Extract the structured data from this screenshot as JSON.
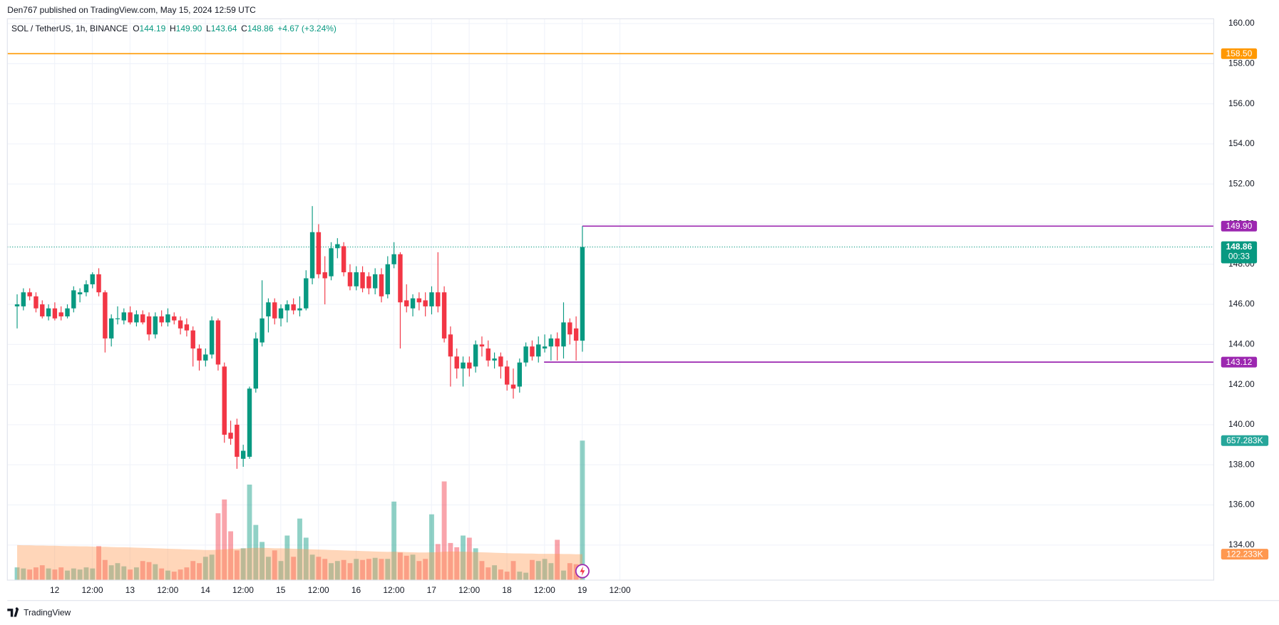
{
  "header": {
    "published": "Den767 published on TradingView.com, May 15, 2024 12:59 UTC"
  },
  "footer": {
    "brand": "TradingView"
  },
  "chart_data": {
    "type": "candlestick",
    "legend": {
      "symbol": "SOL / TetherUS, 1h, BINANCE",
      "items": [
        {
          "key": "O",
          "value": "144.19"
        },
        {
          "key": "H",
          "value": "149.90"
        },
        {
          "key": "L",
          "value": "143.64"
        },
        {
          "key": "C",
          "value": "148.86"
        }
      ],
      "change": "+4.67 (+3.24%)"
    },
    "up_color": "#089981",
    "down_color": "#f23645",
    "ylim": [
      132.25,
      160.24
    ],
    "yticks": [
      {
        "value": 134,
        "label": "134.00"
      },
      {
        "value": 136,
        "label": "136.00"
      },
      {
        "value": 138,
        "label": "138.00"
      },
      {
        "value": 140,
        "label": "140.00"
      },
      {
        "value": 142,
        "label": "142.00"
      },
      {
        "value": 144,
        "label": "144.00"
      },
      {
        "value": 146,
        "label": "146.00"
      },
      {
        "value": 148,
        "label": "148.00"
      },
      {
        "value": 150,
        "label": "150.00"
      },
      {
        "value": 152,
        "label": "152.00"
      },
      {
        "value": 154,
        "label": "154.00"
      },
      {
        "value": 156,
        "label": "156.00"
      },
      {
        "value": 158,
        "label": "158.00"
      },
      {
        "value": 160,
        "label": "160.00"
      }
    ],
    "xtick_labels": [
      "12",
      "12:00",
      "13",
      "12:00",
      "14",
      "12:00",
      "15",
      "12:00",
      "16",
      "12:00",
      "17",
      "12:00",
      "18",
      "12:00",
      "19",
      "12:00"
    ],
    "grid": true,
    "ohlc": [
      [
        145.9,
        146.5,
        144.8,
        146.0
      ],
      [
        145.9,
        146.8,
        145.7,
        146.6
      ],
      [
        146.6,
        146.8,
        146.2,
        146.4
      ],
      [
        146.4,
        146.6,
        145.6,
        145.8
      ],
      [
        146.0,
        146.2,
        145.3,
        145.4
      ],
      [
        145.4,
        146.0,
        145.2,
        145.8
      ],
      [
        145.8,
        146.1,
        145.2,
        145.3
      ],
      [
        145.6,
        145.9,
        145.2,
        145.4
      ],
      [
        145.4,
        146.0,
        145.3,
        145.8
      ],
      [
        145.8,
        146.9,
        145.6,
        146.7
      ],
      [
        146.5,
        146.8,
        146.1,
        146.6
      ],
      [
        146.6,
        147.2,
        146.4,
        147.0
      ],
      [
        147.0,
        147.6,
        146.8,
        147.5
      ],
      [
        147.5,
        147.8,
        146.4,
        146.6
      ],
      [
        146.6,
        146.7,
        143.6,
        144.3
      ],
      [
        144.3,
        145.5,
        143.9,
        145.3
      ],
      [
        145.3,
        145.9,
        145.0,
        145.3
      ],
      [
        145.2,
        145.8,
        145.0,
        145.6
      ],
      [
        145.6,
        145.9,
        145.0,
        145.1
      ],
      [
        145.1,
        145.7,
        144.9,
        145.5
      ],
      [
        145.5,
        145.7,
        145.0,
        145.1
      ],
      [
        145.4,
        145.6,
        144.2,
        144.5
      ],
      [
        144.5,
        145.6,
        144.3,
        145.4
      ],
      [
        145.4,
        145.7,
        144.9,
        145.1
      ],
      [
        145.1,
        145.8,
        144.9,
        145.5
      ],
      [
        145.4,
        145.6,
        145.0,
        145.2
      ],
      [
        145.2,
        145.4,
        144.5,
        144.8
      ],
      [
        145.0,
        145.3,
        144.4,
        144.7
      ],
      [
        144.7,
        144.9,
        142.9,
        143.8
      ],
      [
        143.8,
        144.0,
        142.7,
        143.2
      ],
      [
        143.2,
        143.8,
        142.9,
        143.5
      ],
      [
        143.5,
        145.4,
        143.3,
        145.2
      ],
      [
        145.2,
        145.3,
        142.7,
        143.0
      ],
      [
        142.9,
        143.1,
        139.1,
        139.5
      ],
      [
        139.6,
        140.2,
        139.0,
        139.3
      ],
      [
        140.0,
        140.3,
        137.8,
        138.4
      ],
      [
        138.3,
        139.0,
        137.9,
        138.7
      ],
      [
        138.4,
        141.9,
        138.3,
        141.8
      ],
      [
        141.8,
        144.6,
        141.6,
        144.3
      ],
      [
        144.1,
        147.2,
        143.9,
        145.3
      ],
      [
        145.4,
        146.3,
        144.6,
        146.1
      ],
      [
        146.1,
        146.3,
        145.0,
        145.3
      ],
      [
        145.3,
        146.0,
        144.9,
        145.8
      ],
      [
        145.7,
        146.2,
        145.1,
        146.0
      ],
      [
        146.0,
        146.3,
        145.5,
        145.7
      ],
      [
        145.7,
        146.4,
        145.4,
        145.8
      ],
      [
        145.8,
        147.7,
        145.7,
        147.3
      ],
      [
        147.3,
        150.9,
        147.0,
        149.6
      ],
      [
        149.6,
        150.0,
        147.3,
        147.5
      ],
      [
        147.6,
        148.4,
        146.0,
        147.3
      ],
      [
        147.4,
        149.1,
        147.2,
        148.8
      ],
      [
        148.8,
        149.3,
        148.3,
        149.0
      ],
      [
        148.9,
        149.1,
        147.4,
        147.6
      ],
      [
        147.6,
        148.0,
        146.7,
        146.9
      ],
      [
        146.9,
        147.9,
        146.7,
        147.6
      ],
      [
        147.6,
        147.9,
        146.6,
        146.8
      ],
      [
        147.4,
        147.6,
        146.5,
        146.8
      ],
      [
        146.8,
        147.8,
        146.5,
        147.5
      ],
      [
        147.5,
        147.8,
        146.1,
        146.4
      ],
      [
        146.5,
        148.4,
        146.3,
        148.0
      ],
      [
        148.0,
        149.1,
        147.8,
        148.5
      ],
      [
        148.5,
        148.6,
        143.8,
        146.1
      ],
      [
        146.2,
        147.0,
        145.6,
        145.9
      ],
      [
        145.8,
        146.5,
        145.4,
        146.3
      ],
      [
        146.3,
        146.6,
        145.7,
        146.1
      ],
      [
        146.2,
        146.6,
        145.4,
        145.9
      ],
      [
        145.9,
        146.9,
        145.5,
        146.6
      ],
      [
        146.6,
        148.6,
        145.6,
        145.9
      ],
      [
        146.6,
        146.9,
        144.1,
        144.3
      ],
      [
        144.5,
        144.9,
        141.9,
        143.4
      ],
      [
        143.4,
        143.8,
        142.3,
        142.8
      ],
      [
        142.8,
        143.4,
        141.9,
        143.1
      ],
      [
        143.1,
        143.4,
        142.4,
        142.8
      ],
      [
        142.9,
        144.2,
        142.6,
        144.0
      ],
      [
        144.0,
        144.4,
        143.4,
        143.9
      ],
      [
        143.8,
        144.2,
        142.9,
        143.2
      ],
      [
        143.2,
        143.6,
        142.8,
        143.3
      ],
      [
        143.4,
        143.6,
        142.3,
        142.9
      ],
      [
        142.9,
        143.2,
        141.7,
        142.0
      ],
      [
        142.0,
        142.8,
        141.3,
        141.8
      ],
      [
        141.9,
        143.3,
        141.6,
        143.1
      ],
      [
        143.1,
        144.1,
        142.9,
        143.9
      ],
      [
        143.9,
        144.2,
        143.2,
        143.4
      ],
      [
        143.4,
        144.4,
        143.1,
        144.0
      ],
      [
        143.8,
        144.5,
        143.6,
        143.9
      ],
      [
        143.9,
        144.5,
        143.2,
        144.3
      ],
      [
        144.3,
        144.6,
        143.2,
        143.9
      ],
      [
        143.9,
        146.1,
        143.3,
        145.1
      ],
      [
        145.1,
        145.3,
        144.0,
        144.5
      ],
      [
        144.8,
        145.4,
        143.2,
        144.19
      ],
      [
        144.19,
        149.9,
        143.64,
        148.86
      ]
    ],
    "volume": {
      "values": [
        60,
        55,
        50,
        60,
        70,
        55,
        50,
        60,
        45,
        55,
        50,
        60,
        55,
        160,
        95,
        70,
        80,
        65,
        50,
        60,
        90,
        85,
        75,
        55,
        45,
        40,
        50,
        60,
        90,
        80,
        110,
        120,
        315,
        380,
        230,
        140,
        150,
        450,
        260,
        180,
        110,
        140,
        90,
        210,
        110,
        290,
        200,
        120,
        110,
        100,
        80,
        90,
        95,
        80,
        100,
        95,
        100,
        105,
        100,
        100,
        370,
        130,
        115,
        120,
        90,
        100,
        310,
        170,
        465,
        175,
        155,
        210,
        200,
        150,
        90,
        60,
        70,
        50,
        40,
        90,
        40,
        35,
        95,
        90,
        100,
        80,
        190,
        45,
        80,
        75,
        657.283
      ],
      "last_label": "657.283K",
      "color": "#26a69a"
    },
    "volume_ma": {
      "values": [
        165,
        164,
        164,
        163,
        163,
        162,
        162,
        161,
        160,
        160,
        159,
        159,
        158,
        157,
        157,
        156,
        155,
        155,
        154,
        153,
        152,
        151,
        150,
        149,
        148,
        147,
        146,
        145,
        144,
        143,
        142,
        142,
        143,
        145,
        147,
        148,
        149,
        151,
        152,
        152,
        151,
        150,
        150,
        149,
        148,
        147,
        146,
        145,
        144,
        143,
        142,
        141,
        140,
        139,
        138,
        137,
        136,
        135,
        134,
        133,
        134,
        133,
        132,
        131,
        130,
        130,
        131,
        132,
        134,
        135,
        135,
        134,
        133,
        132,
        131,
        130,
        129,
        128,
        127,
        126,
        126,
        125,
        125,
        124,
        124,
        124,
        124,
        123,
        123,
        122,
        122.233
      ],
      "last_label": "122.233K",
      "color": "#ff9850"
    },
    "levels": [
      {
        "value": 158.5,
        "label": "158.50",
        "color": "#ff9800"
      },
      {
        "value": 149.9,
        "label": "149.90",
        "color": "#9c27b0"
      },
      {
        "value": 143.12,
        "label": "143.12",
        "color": "#9c27b0"
      }
    ],
    "last_price": {
      "value": 148.86,
      "label": "148.86",
      "countdown": "00:33"
    }
  }
}
